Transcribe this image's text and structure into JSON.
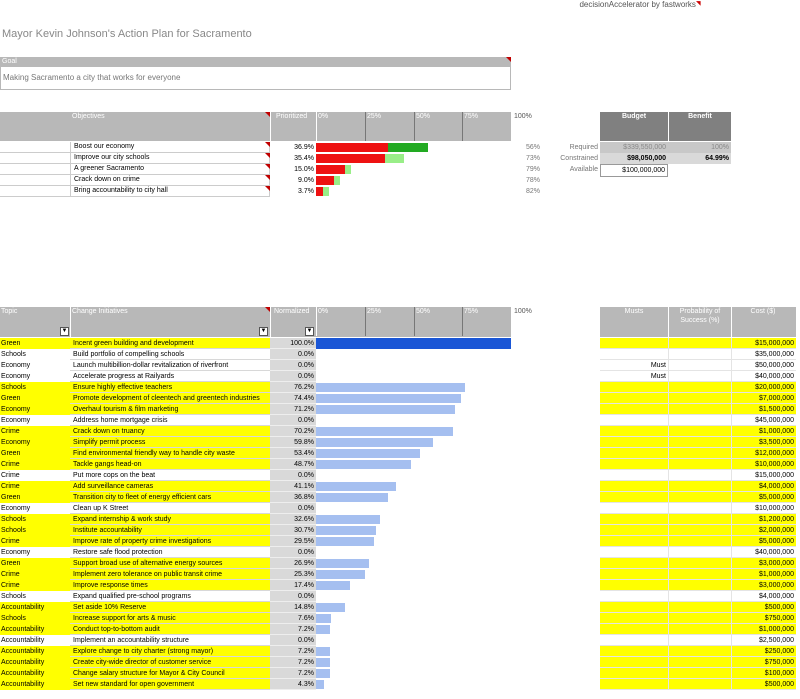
{
  "brand": {
    "text": "decisionAccelerator by fastworks"
  },
  "title": "Mayor Kevin Johnson's Action Plan for Sacramento",
  "goal": {
    "label": "Goal",
    "value": "Making Sacramento a city that works for everyone"
  },
  "objectives_header": {
    "col_objectives": "Objectives",
    "col_prioritized": "Prioritized",
    "ticks": [
      "0%",
      "25%",
      "50%",
      "75%",
      "100%"
    ]
  },
  "objectives": [
    {
      "name": "Boost our economy",
      "pct": "36.9%",
      "score": 0.369,
      "green": 0.56,
      "right": "56%"
    },
    {
      "name": "Improve our city schools",
      "pct": "35.4%",
      "score": 0.354,
      "green": 0.27,
      "right": "73%"
    },
    {
      "name": "A greener Sacramento",
      "pct": "15.0%",
      "score": 0.15,
      "green": 0.21,
      "right": "79%"
    },
    {
      "name": "Crack down on crime",
      "pct": "9.0%",
      "score": 0.09,
      "green": 0.22,
      "right": "78%"
    },
    {
      "name": "Bring accountability to city hall",
      "pct": "3.7%",
      "score": 0.037,
      "green": 0.18,
      "right": "82%"
    }
  ],
  "budget": {
    "col_budget": "Budget",
    "col_benefit": "Benefit",
    "rows": [
      {
        "label": "Required",
        "budget": "$339,550,000",
        "benefit": "100%"
      },
      {
        "label": "Constrained",
        "budget": "$98,050,000",
        "benefit": "64.99%"
      },
      {
        "label": "Available",
        "budget": "$100,000,000",
        "benefit": ""
      }
    ]
  },
  "initiatives_header": {
    "col_topic": "Topic",
    "col_change": "Change Initiatives",
    "col_normalized": "Normalized",
    "ticks": [
      "0%",
      "25%",
      "50%",
      "75%",
      "100%"
    ],
    "col_musts": "Musts",
    "col_prob": "Probability of Success (%)",
    "col_cost": "Cost ($)"
  },
  "initiatives": [
    {
      "topic": "Green",
      "name": "Incent green building and development",
      "norm": "100.0%",
      "value": 1.0,
      "must": "",
      "cost": "$15,000,000",
      "hl": true,
      "sel": true
    },
    {
      "topic": "Schools",
      "name": "Build portfolio of compelling schools",
      "norm": "0.0%",
      "value": 0,
      "must": "",
      "cost": "$35,000,000",
      "hl": false
    },
    {
      "topic": "Economy",
      "name": "Launch multibillion-dollar revitalization of riverfront",
      "norm": "0.0%",
      "value": 0,
      "must": "Must",
      "cost": "$50,000,000",
      "hl": false
    },
    {
      "topic": "Economy",
      "name": "Accelerate progress at Railyards",
      "norm": "0.0%",
      "value": 0,
      "must": "Must",
      "cost": "$40,000,000",
      "hl": false
    },
    {
      "topic": "Schools",
      "name": "Ensure highly effective teachers",
      "norm": "76.2%",
      "value": 0.762,
      "must": "",
      "cost": "$20,000,000",
      "hl": true
    },
    {
      "topic": "Green",
      "name": "Promote development of cleentech and greentech industries",
      "norm": "74.4%",
      "value": 0.744,
      "must": "",
      "cost": "$7,000,000",
      "hl": true
    },
    {
      "topic": "Economy",
      "name": "Overhaul tourism & film marketing",
      "norm": "71.2%",
      "value": 0.712,
      "must": "",
      "cost": "$1,500,000",
      "hl": true
    },
    {
      "topic": "Economy",
      "name": "Address home mortgage crisis",
      "norm": "0.0%",
      "value": 0,
      "must": "",
      "cost": "$45,000,000",
      "hl": false
    },
    {
      "topic": "Crime",
      "name": "Crack down on truancy",
      "norm": "70.2%",
      "value": 0.702,
      "must": "",
      "cost": "$1,000,000",
      "hl": true
    },
    {
      "topic": "Economy",
      "name": "Simplify permit process",
      "norm": "59.8%",
      "value": 0.598,
      "must": "",
      "cost": "$3,500,000",
      "hl": true
    },
    {
      "topic": "Green",
      "name": "Find environmental friendly way to handle city waste",
      "norm": "53.4%",
      "value": 0.534,
      "must": "",
      "cost": "$12,000,000",
      "hl": true
    },
    {
      "topic": "Crime",
      "name": "Tackle gangs head-on",
      "norm": "48.7%",
      "value": 0.487,
      "must": "",
      "cost": "$10,000,000",
      "hl": true
    },
    {
      "topic": "Crime",
      "name": "Put more cops on the beat",
      "norm": "0.0%",
      "value": 0,
      "must": "",
      "cost": "$15,000,000",
      "hl": false
    },
    {
      "topic": "Crime",
      "name": "Add surveillance cameras",
      "norm": "41.1%",
      "value": 0.411,
      "must": "",
      "cost": "$4,000,000",
      "hl": true
    },
    {
      "topic": "Green",
      "name": "Transition city to fleet of energy efficient cars",
      "norm": "36.8%",
      "value": 0.368,
      "must": "",
      "cost": "$5,000,000",
      "hl": true
    },
    {
      "topic": "Economy",
      "name": "Clean up K Street",
      "norm": "0.0%",
      "value": 0,
      "must": "",
      "cost": "$10,000,000",
      "hl": false
    },
    {
      "topic": "Schools",
      "name": "Expand internship & work study",
      "norm": "32.6%",
      "value": 0.326,
      "must": "",
      "cost": "$1,200,000",
      "hl": true
    },
    {
      "topic": "Schools",
      "name": "Institute accountability",
      "norm": "30.7%",
      "value": 0.307,
      "must": "",
      "cost": "$2,000,000",
      "hl": true
    },
    {
      "topic": "Crime",
      "name": "Improve rate of property crime investigations",
      "norm": "29.5%",
      "value": 0.295,
      "must": "",
      "cost": "$5,000,000",
      "hl": true
    },
    {
      "topic": "Economy",
      "name": "Restore safe flood protection",
      "norm": "0.0%",
      "value": 0,
      "must": "",
      "cost": "$40,000,000",
      "hl": false
    },
    {
      "topic": "Green",
      "name": "Support broad use of alternative energy sources",
      "norm": "26.9%",
      "value": 0.269,
      "must": "",
      "cost": "$3,000,000",
      "hl": true
    },
    {
      "topic": "Crime",
      "name": "Implement zero tolerance on public transit crime",
      "norm": "25.3%",
      "value": 0.253,
      "must": "",
      "cost": "$1,000,000",
      "hl": true
    },
    {
      "topic": "Crime",
      "name": "Improve response times",
      "norm": "17.4%",
      "value": 0.174,
      "must": "",
      "cost": "$3,000,000",
      "hl": true
    },
    {
      "topic": "Schools",
      "name": "Expand qualified pre-school programs",
      "norm": "0.0%",
      "value": 0,
      "must": "",
      "cost": "$4,000,000",
      "hl": false
    },
    {
      "topic": "Accountability",
      "name": "Set aside 10% Reserve",
      "norm": "14.8%",
      "value": 0.148,
      "must": "",
      "cost": "$500,000",
      "hl": true
    },
    {
      "topic": "Schools",
      "name": "Increase support for arts & music",
      "norm": "7.6%",
      "value": 0.076,
      "must": "",
      "cost": "$750,000",
      "hl": true
    },
    {
      "topic": "Accountability",
      "name": "Conduct top-to-bottom audit",
      "norm": "7.2%",
      "value": 0.072,
      "must": "",
      "cost": "$1,000,000",
      "hl": true
    },
    {
      "topic": "Accountability",
      "name": "Implement an accountability structure",
      "norm": "0.0%",
      "value": 0,
      "must": "",
      "cost": "$2,500,000",
      "hl": false
    },
    {
      "topic": "Accountability",
      "name": "Explore change to city charter (strong mayor)",
      "norm": "7.2%",
      "value": 0.072,
      "must": "",
      "cost": "$250,000",
      "hl": true
    },
    {
      "topic": "Accountability",
      "name": "Create city-wide director of customer service",
      "norm": "7.2%",
      "value": 0.072,
      "must": "",
      "cost": "$750,000",
      "hl": true
    },
    {
      "topic": "Accountability",
      "name": "Change salary structure for Mayor & City Council",
      "norm": "7.2%",
      "value": 0.072,
      "must": "",
      "cost": "$100,000",
      "hl": true
    },
    {
      "topic": "Accountability",
      "name": "Set new standard for open government",
      "norm": "4.3%",
      "value": 0.043,
      "must": "",
      "cost": "$500,000",
      "hl": true
    }
  ],
  "colors": {
    "red": "#ee1111",
    "green": "#22aa22",
    "light_green": "#99ee88",
    "blue_bar": "#a5bff0",
    "selected_bar": "#1a56d6",
    "highlight": "#ffff00",
    "header_grey": "#b8b8b8",
    "header_dark": "#808080"
  }
}
